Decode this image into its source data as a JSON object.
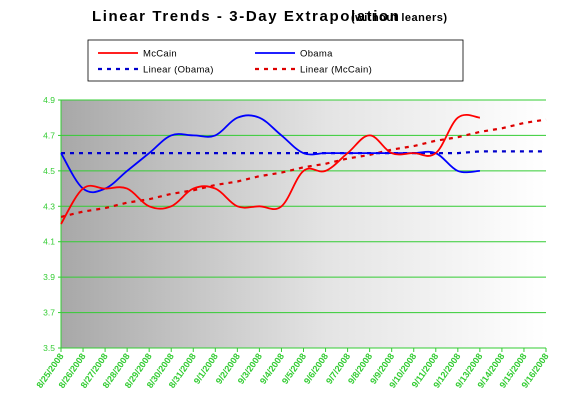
{
  "chart_data": {
    "type": "line",
    "title": "Linear Trends - 3-Day Extrapolation",
    "subtitle": "(without leaners)",
    "categories": [
      "8/25/2008",
      "8/26/2008",
      "8/27/2008",
      "8/28/2008",
      "8/29/2008",
      "8/30/2008",
      "8/31/2008",
      "9/1/2008",
      "9/2/2008",
      "9/3/2008",
      "9/4/2008",
      "9/5/2008",
      "9/6/2008",
      "9/7/2008",
      "9/8/2008",
      "9/9/2008",
      "9/10/2008",
      "9/11/2008",
      "9/12/2008",
      "9/13/2008",
      "9/14/2008",
      "9/15/2008",
      "9/16/2008"
    ],
    "ylim": [
      3.5,
      4.9
    ],
    "yticks": [
      "3.5",
      "3.7",
      "3.9",
      "4.1",
      "4.3",
      "4.5",
      "4.7",
      "4.9"
    ],
    "series": [
      {
        "name": "McCain",
        "color": "#ff0000",
        "style": "solid",
        "values": [
          4.2,
          4.4,
          4.4,
          4.4,
          4.3,
          4.3,
          4.4,
          4.4,
          4.3,
          4.3,
          4.3,
          4.5,
          4.5,
          4.6,
          4.7,
          4.6,
          4.6,
          4.6,
          4.8,
          4.8,
          null,
          null,
          null
        ]
      },
      {
        "name": "Obama",
        "color": "#0000ff",
        "style": "solid",
        "values": [
          4.6,
          4.4,
          4.4,
          4.5,
          4.6,
          4.7,
          4.7,
          4.7,
          4.8,
          4.8,
          4.7,
          4.6,
          4.6,
          4.6,
          4.6,
          4.6,
          4.6,
          4.6,
          4.5,
          4.5,
          null,
          null,
          null
        ]
      },
      {
        "name": "Linear (Obama)",
        "color": "#0000cc",
        "style": "dashed",
        "values": [
          4.6,
          4.6,
          4.6,
          4.6,
          4.6,
          4.6,
          4.6,
          4.6,
          4.6,
          4.6,
          4.6,
          4.6,
          4.6,
          4.6,
          4.6,
          4.6,
          4.6,
          4.6,
          4.6,
          4.61,
          4.61,
          4.61,
          4.61
        ]
      },
      {
        "name": "Linear (McCain)",
        "color": "#dd0000",
        "style": "dashed",
        "values": [
          4.24,
          4.27,
          4.29,
          4.32,
          4.34,
          4.37,
          4.39,
          4.42,
          4.44,
          4.47,
          4.49,
          4.52,
          4.54,
          4.57,
          4.59,
          4.62,
          4.64,
          4.67,
          4.69,
          4.72,
          4.74,
          4.77,
          4.79
        ]
      }
    ],
    "legend_order": [
      "McCain",
      "Obama",
      "Linear (Obama)",
      "Linear (McCain)"
    ],
    "legend_position": "top",
    "grid": true,
    "background": "gradient gray-to-white"
  }
}
